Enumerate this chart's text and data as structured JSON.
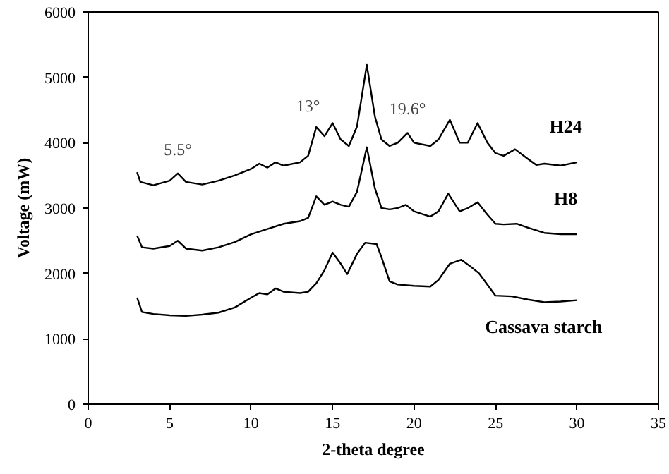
{
  "chart_data": {
    "type": "line",
    "xlabel": "2-theta degree",
    "ylabel": "Voltage (mW)",
    "xlim": [
      0,
      35
    ],
    "ylim": [
      0,
      6000
    ],
    "xticks": [
      0,
      5,
      10,
      15,
      20,
      25,
      30,
      35
    ],
    "yticks": [
      0,
      1000,
      2000,
      3000,
      4000,
      5000,
      6000
    ],
    "grid": false,
    "legend": false,
    "marker": "none",
    "line_style": "solid",
    "series": [
      {
        "name": "H24",
        "color": "#000000",
        "x": [
          3,
          3.2,
          4,
          5,
          5.5,
          6,
          7,
          8,
          9,
          10,
          10.5,
          11,
          11.5,
          12,
          13,
          13.5,
          14,
          14.5,
          15,
          15.5,
          16,
          16.5,
          17.1,
          17.6,
          18,
          18.5,
          19,
          19.6,
          20,
          21,
          21.5,
          22.2,
          22.8,
          23.3,
          23.9,
          24.5,
          25,
          25.5,
          26.2,
          27,
          27.5,
          28,
          29,
          30
        ],
        "values": [
          3550,
          3400,
          3350,
          3420,
          3530,
          3400,
          3360,
          3420,
          3500,
          3600,
          3680,
          3620,
          3700,
          3650,
          3700,
          3800,
          4240,
          4100,
          4300,
          4050,
          3950,
          4250,
          5190,
          4400,
          4050,
          3950,
          4000,
          4150,
          4000,
          3950,
          4050,
          4350,
          4000,
          4000,
          4300,
          4000,
          3840,
          3800,
          3900,
          3750,
          3660,
          3680,
          3650,
          3700
        ]
      },
      {
        "name": "H8",
        "color": "#000000",
        "x": [
          3,
          3.3,
          4,
          5,
          5.5,
          6,
          7,
          8,
          9,
          10,
          11,
          12,
          13,
          13.5,
          14,
          14.5,
          15,
          15.5,
          16,
          16.5,
          17.1,
          17.6,
          18,
          18.5,
          19,
          19.5,
          20,
          21,
          21.5,
          22.1,
          22.8,
          23.3,
          23.9,
          24.5,
          25,
          25.5,
          26.3,
          27,
          28,
          29,
          30
        ],
        "values": [
          2580,
          2400,
          2380,
          2420,
          2500,
          2380,
          2350,
          2400,
          2480,
          2600,
          2680,
          2760,
          2800,
          2850,
          3180,
          3050,
          3100,
          3050,
          3020,
          3250,
          3930,
          3300,
          3000,
          2980,
          3000,
          3050,
          2950,
          2870,
          2950,
          3220,
          2950,
          3000,
          3090,
          2900,
          2760,
          2750,
          2760,
          2700,
          2620,
          2600,
          2600
        ]
      },
      {
        "name": "Cassava starch",
        "color": "#000000",
        "x": [
          3,
          3.3,
          4,
          5,
          6,
          7,
          8,
          9,
          10,
          10.5,
          11,
          11.5,
          12,
          13,
          13.5,
          14,
          14.5,
          15,
          15.5,
          15.9,
          16.5,
          17,
          17.7,
          18,
          18.5,
          19,
          20,
          21,
          21.5,
          22.2,
          22.9,
          23.5,
          24,
          25,
          26,
          27,
          28,
          29,
          30
        ],
        "values": [
          1630,
          1410,
          1380,
          1360,
          1350,
          1370,
          1400,
          1480,
          1630,
          1700,
          1680,
          1770,
          1720,
          1700,
          1720,
          1850,
          2050,
          2320,
          2150,
          1990,
          2300,
          2470,
          2450,
          2250,
          1880,
          1830,
          1810,
          1800,
          1900,
          2150,
          2210,
          2100,
          2000,
          1660,
          1650,
          1600,
          1560,
          1570,
          1590
        ]
      }
    ],
    "annotations": [
      {
        "text": "5.5°",
        "x": 5.5,
        "y": 3530
      },
      {
        "text": "13°",
        "x": 13.5,
        "y": 4200
      },
      {
        "text": "19.6°",
        "x": 19.6,
        "y": 4150
      }
    ]
  }
}
